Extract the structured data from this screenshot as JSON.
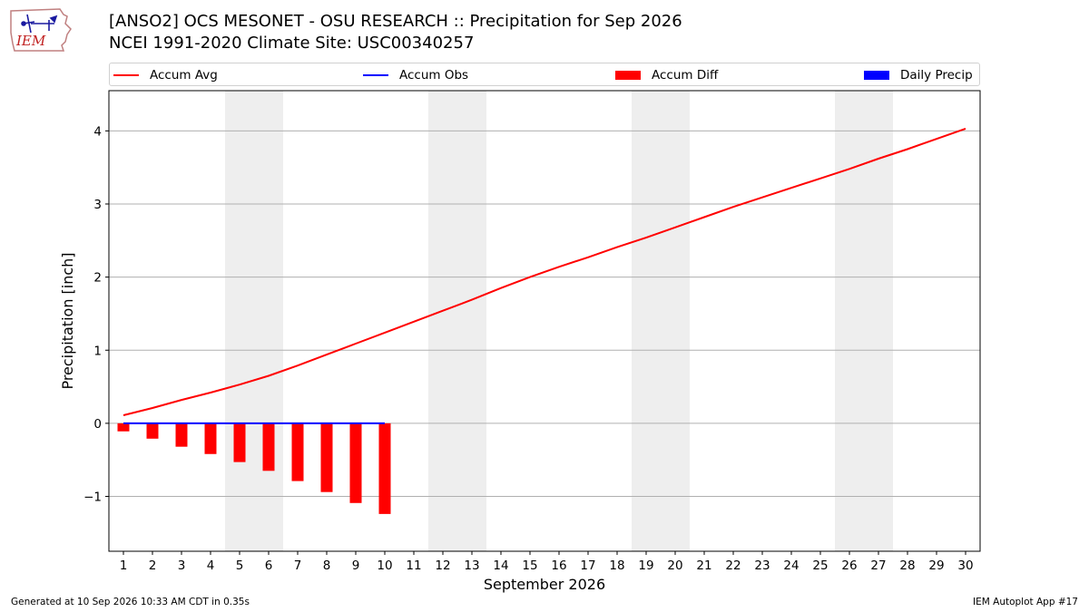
{
  "logo": {
    "text": "IEM"
  },
  "header": {
    "title_line1": "[ANSO2] OCS MESONET - OSU RESEARCH :: Precipitation for Sep 2026",
    "title_line2": "NCEI 1991-2020 Climate Site: USC00340257"
  },
  "legend": [
    {
      "label": "Accum Avg",
      "color": "#ff0000",
      "kind": "line"
    },
    {
      "label": "Accum Obs",
      "color": "#0000ff",
      "kind": "line"
    },
    {
      "label": "Accum Diff",
      "color": "#ff0000",
      "kind": "patch"
    },
    {
      "label": "Daily Precip",
      "color": "#0000ff",
      "kind": "patch"
    }
  ],
  "chart_data": {
    "type": "line",
    "xlabel": "September 2026",
    "ylabel": "Precipitation [inch]",
    "xlim": [
      0.5,
      30.5
    ],
    "ylim": [
      -1.75,
      4.55
    ],
    "x_ticks": [
      1,
      2,
      3,
      4,
      5,
      6,
      7,
      8,
      9,
      10,
      11,
      12,
      13,
      14,
      15,
      16,
      17,
      18,
      19,
      20,
      21,
      22,
      23,
      24,
      25,
      26,
      27,
      28,
      29,
      30
    ],
    "y_ticks": [
      -1,
      0,
      1,
      2,
      3,
      4
    ],
    "y_tick_labels": [
      "−1",
      "0",
      "1",
      "2",
      "3",
      "4"
    ],
    "grid": "y",
    "weekend_shading": [
      [
        4.5,
        6.5
      ],
      [
        11.5,
        13.5
      ],
      [
        18.5,
        20.5
      ],
      [
        25.5,
        27.5
      ]
    ],
    "series": [
      {
        "name": "Accum Avg",
        "type": "line",
        "color": "#ff0000",
        "x": [
          1,
          2,
          3,
          4,
          5,
          6,
          7,
          8,
          9,
          10,
          11,
          12,
          13,
          14,
          15,
          16,
          17,
          18,
          19,
          20,
          21,
          22,
          23,
          24,
          25,
          26,
          27,
          28,
          29,
          30
        ],
        "values": [
          0.11,
          0.21,
          0.32,
          0.42,
          0.53,
          0.65,
          0.79,
          0.94,
          1.09,
          1.24,
          1.39,
          1.54,
          1.69,
          1.85,
          2.0,
          2.14,
          2.27,
          2.41,
          2.54,
          2.68,
          2.82,
          2.96,
          3.09,
          3.22,
          3.35,
          3.48,
          3.62,
          3.75,
          3.89,
          4.03
        ]
      },
      {
        "name": "Accum Obs",
        "type": "line",
        "color": "#0000ff",
        "x": [
          1,
          2,
          3,
          4,
          5,
          6,
          7,
          8,
          9,
          10
        ],
        "values": [
          0,
          0,
          0,
          0,
          0,
          0,
          0,
          0,
          0,
          0
        ]
      },
      {
        "name": "Accum Diff",
        "type": "bar",
        "color": "#ff0000",
        "x": [
          1,
          2,
          3,
          4,
          5,
          6,
          7,
          8,
          9,
          10
        ],
        "values": [
          -0.11,
          -0.21,
          -0.32,
          -0.42,
          -0.53,
          -0.65,
          -0.79,
          -0.94,
          -1.09,
          -1.24
        ]
      },
      {
        "name": "Daily Precip",
        "type": "bar",
        "color": "#0000ff",
        "x": [
          1,
          2,
          3,
          4,
          5,
          6,
          7,
          8,
          9,
          10
        ],
        "values": [
          0,
          0,
          0,
          0,
          0,
          0,
          0,
          0,
          0,
          0
        ]
      }
    ]
  },
  "footer": {
    "generated": "Generated at 10 Sep 2026 10:33 AM CDT in 0.35s",
    "app": "IEM Autoplot App #17"
  }
}
